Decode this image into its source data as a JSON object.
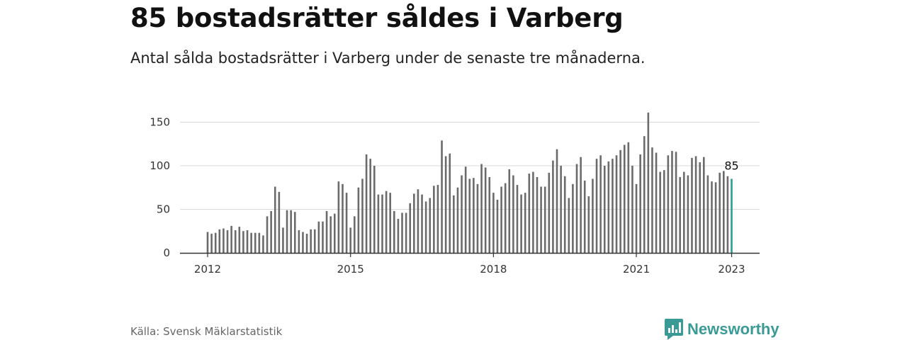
{
  "title": "85 bostadsrätter såldes i Varberg",
  "subtitle": "Antal sålda bostadsrätter i Varberg under de senaste tre månaderna.",
  "source": "Källa: Svensk Mäklarstatistik",
  "brand": {
    "name": "Newsworthy",
    "color": "#3a9b96",
    "icon": "newsworthy-logo-icon"
  },
  "chart_data": {
    "type": "bar",
    "start": "2012-01",
    "interval": "month",
    "values": [
      24,
      22,
      23,
      27,
      28,
      26,
      31,
      26,
      30,
      25,
      26,
      23,
      23,
      23,
      20,
      42,
      48,
      76,
      70,
      29,
      49,
      49,
      47,
      26,
      24,
      22,
      27,
      27,
      36,
      36,
      48,
      42,
      45,
      82,
      79,
      69,
      29,
      42,
      75,
      85,
      113,
      108,
      100,
      67,
      67,
      71,
      69,
      48,
      39,
      46,
      46,
      57,
      68,
      73,
      67,
      59,
      63,
      77,
      78,
      129,
      111,
      114,
      66,
      75,
      89,
      99,
      85,
      86,
      79,
      102,
      98,
      87,
      69,
      61,
      76,
      80,
      96,
      89,
      78,
      67,
      69,
      91,
      93,
      87,
      76,
      76,
      92,
      106,
      119,
      100,
      88,
      63,
      79,
      102,
      110,
      83,
      65,
      85,
      108,
      112,
      100,
      105,
      108,
      112,
      118,
      124,
      127,
      100,
      79,
      113,
      134,
      161,
      121,
      115,
      93,
      95,
      112,
      117,
      116,
      87,
      93,
      89,
      109,
      111,
      104,
      110,
      89,
      82,
      81,
      92,
      94,
      88,
      85
    ],
    "highlight": {
      "value": 85,
      "label": "85",
      "color": "#2a9d97"
    },
    "bar_color": "#6b6b6b",
    "x_ticks": [
      "2012",
      "2015",
      "2018",
      "2021",
      "2023"
    ],
    "y_ticks": [
      "0",
      "50",
      "100",
      "150"
    ],
    "ylim": [
      0,
      170
    ],
    "grid": true
  }
}
